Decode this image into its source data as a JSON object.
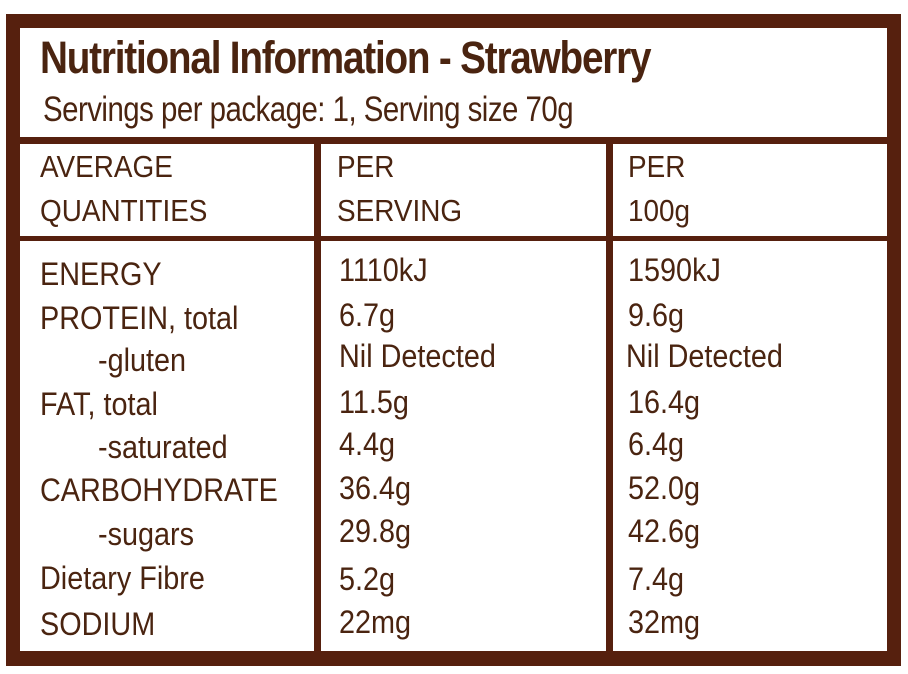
{
  "title": "Nutritional Information - Strawberry",
  "subtitle": "Servings per package: 1, Serving size 70g",
  "headers": {
    "col1": [
      "AVERAGE",
      "QUANTITIES"
    ],
    "col2": [
      "PER",
      "SERVING"
    ],
    "col3": [
      "PER",
      "100g"
    ]
  },
  "rows": [
    {
      "label": "ENERGY",
      "per_serving": "1110kJ",
      "per_100g": "1590kJ"
    },
    {
      "label": "PROTEIN, total",
      "per_serving": "6.7g",
      "per_100g": "9.6g"
    },
    {
      "label": "-gluten",
      "per_serving": "Nil Detected",
      "per_100g": "Nil Detected"
    },
    {
      "label": "FAT, total",
      "per_serving": "11.5g",
      "per_100g": "16.4g"
    },
    {
      "label": "-saturated",
      "per_serving": "4.4g",
      "per_100g": "6.4g"
    },
    {
      "label": "CARBOHYDRATE",
      "per_serving": "36.4g",
      "per_100g": "52.0g"
    },
    {
      "label": "-sugars",
      "per_serving": "29.8g",
      "per_100g": "42.6g"
    },
    {
      "label": "Dietary Fibre",
      "per_serving": "5.2g",
      "per_100g": "7.4g"
    },
    {
      "label": "SODIUM",
      "per_serving": "22mg",
      "per_100g": "32mg"
    }
  ],
  "colors": {
    "border": "#56200e",
    "text": "#4a2410",
    "background": "#ffffff"
  }
}
